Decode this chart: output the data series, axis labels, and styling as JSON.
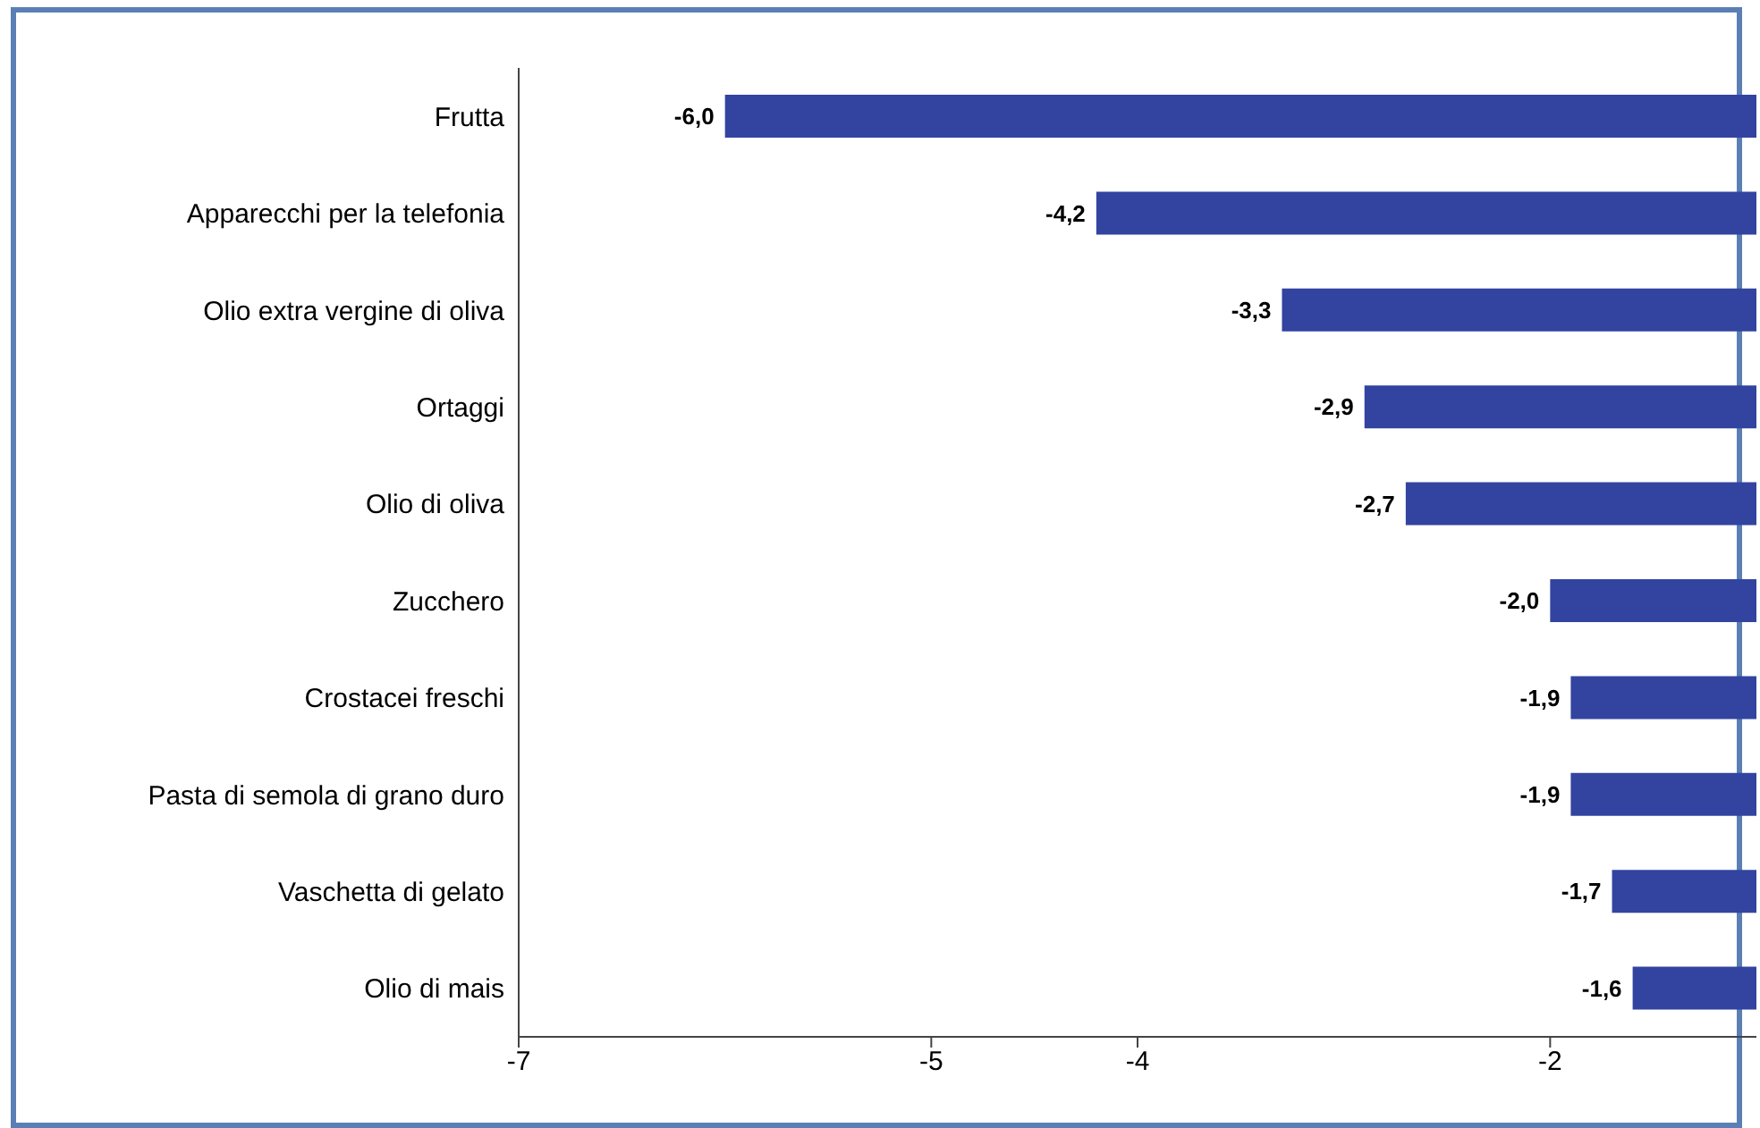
{
  "chart_data": {
    "type": "bar",
    "orientation": "horizontal",
    "categories": [
      "Frutta",
      "Apparecchi per la telefonia",
      "Olio extra vergine di oliva",
      "Ortaggi",
      "Olio di oliva",
      "Zucchero",
      "Crostacei freschi",
      "Pasta di semola di grano duro",
      "Vaschetta di gelato",
      "Olio di mais"
    ],
    "values": [
      -6.0,
      -4.2,
      -3.3,
      -2.9,
      -2.7,
      -2.0,
      -1.9,
      -1.9,
      -1.7,
      -1.6
    ],
    "color": "#3244a0",
    "value_labels": [
      "-6,0",
      "-4,2",
      "-3,3",
      "-2,9",
      "-2,7",
      "-2,0",
      "-1,9",
      "-1,9",
      "-1,7",
      "-1,6"
    ],
    "xlim": [
      -7,
      -1
    ],
    "xticks": [
      -7,
      -5,
      -4,
      -2
    ],
    "grid": false,
    "legend": false
  }
}
